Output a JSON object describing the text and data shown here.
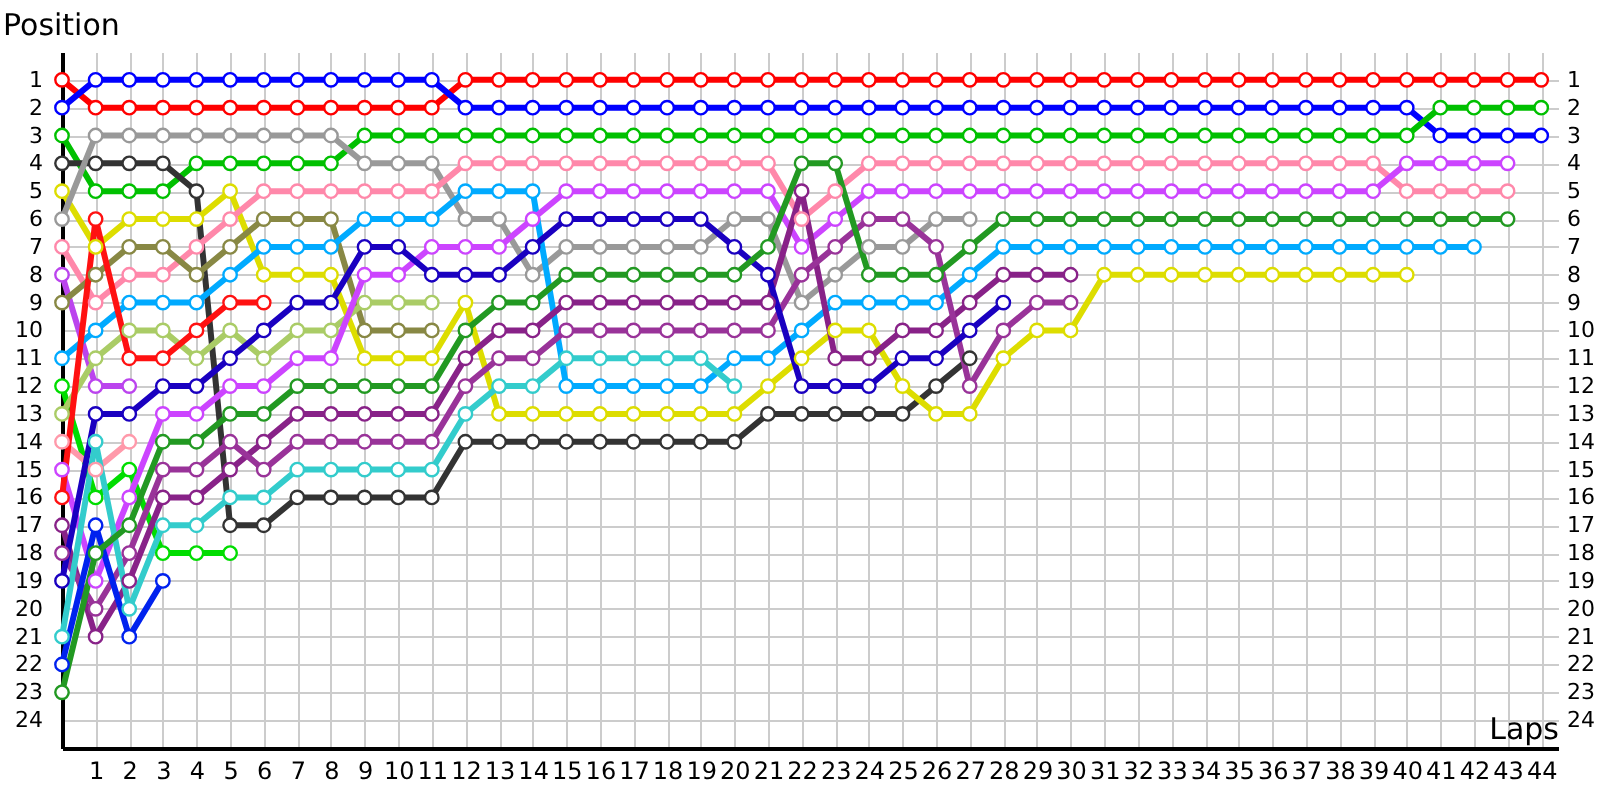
{
  "chart_data": {
    "type": "line",
    "xlabel": "Laps",
    "ylabel": "Position",
    "x": [
      0,
      1,
      2,
      3,
      4,
      5,
      6,
      7,
      8,
      9,
      10,
      11,
      12,
      13,
      14,
      15,
      16,
      17,
      18,
      19,
      20,
      21,
      22,
      23,
      24,
      25,
      26,
      27,
      28,
      29,
      30,
      31,
      32,
      33,
      34,
      35,
      36,
      37,
      38,
      39,
      40,
      41,
      42,
      43,
      44
    ],
    "xlim": [
      0,
      44.5
    ],
    "xticks": [
      1,
      2,
      3,
      4,
      5,
      6,
      7,
      8,
      9,
      10,
      11,
      12,
      13,
      14,
      15,
      16,
      17,
      18,
      19,
      20,
      21,
      22,
      23,
      24,
      25,
      26,
      27,
      28,
      29,
      30,
      31,
      32,
      33,
      34,
      35,
      36,
      37,
      38,
      39,
      40,
      41,
      42,
      43,
      44
    ],
    "ylim": [
      25,
      0
    ],
    "yticks": [
      1,
      2,
      3,
      4,
      5,
      6,
      7,
      8,
      9,
      10,
      11,
      12,
      13,
      14,
      15,
      16,
      17,
      18,
      19,
      20,
      21,
      22,
      23,
      24
    ],
    "y2lim": [
      25,
      0
    ],
    "y2ticks": [
      1,
      2,
      3,
      4,
      5,
      6,
      7,
      8,
      9,
      10,
      11,
      12,
      13,
      14,
      15,
      16,
      17,
      18,
      19,
      20,
      21,
      22,
      23,
      24
    ],
    "grid": true,
    "legend": false,
    "marker": "circle",
    "series": [
      {
        "color": "#ff0000",
        "values": [
          1,
          2,
          2,
          2,
          2,
          2,
          2,
          2,
          2,
          2,
          2,
          2,
          1,
          1,
          1,
          1,
          1,
          1,
          1,
          1,
          1,
          1,
          1,
          1,
          1,
          1,
          1,
          1,
          1,
          1,
          1,
          1,
          1,
          1,
          1,
          1,
          1,
          1,
          1,
          1,
          1,
          1,
          1,
          1,
          1
        ]
      },
      {
        "color": "#0000ff",
        "values": [
          2,
          1,
          1,
          1,
          1,
          1,
          1,
          1,
          1,
          1,
          1,
          1,
          2,
          2,
          2,
          2,
          2,
          2,
          2,
          2,
          2,
          2,
          2,
          2,
          2,
          2,
          2,
          2,
          2,
          2,
          2,
          2,
          2,
          2,
          2,
          2,
          2,
          2,
          2,
          2,
          2,
          3,
          3,
          3,
          3
        ]
      },
      {
        "color": "#00c000",
        "values": [
          3,
          5,
          5,
          5,
          4,
          4,
          4,
          4,
          4,
          3,
          3,
          3,
          3,
          3,
          3,
          3,
          3,
          3,
          3,
          3,
          3,
          3,
          3,
          3,
          3,
          3,
          3,
          3,
          3,
          3,
          3,
          3,
          3,
          3,
          3,
          3,
          3,
          3,
          3,
          3,
          3,
          2,
          2,
          2,
          2
        ]
      },
      {
        "color": "#333333",
        "values": [
          4,
          4,
          4,
          4,
          5,
          17,
          17,
          16,
          16,
          16,
          16,
          16,
          14,
          14,
          14,
          14,
          14,
          14,
          14,
          14,
          14,
          13,
          13,
          13,
          13,
          13,
          12,
          11,
          null,
          null,
          null,
          null,
          null,
          null,
          null,
          null,
          null,
          null,
          null,
          null,
          null,
          null,
          null,
          null,
          null
        ]
      },
      {
        "color": "#dddd00",
        "values": [
          5,
          7,
          6,
          6,
          6,
          5,
          8,
          8,
          8,
          11,
          11,
          11,
          9,
          13,
          13,
          13,
          13,
          13,
          13,
          13,
          13,
          12,
          11,
          10,
          10,
          12,
          13,
          13,
          11,
          10,
          10,
          8,
          8,
          8,
          8,
          8,
          8,
          8,
          8,
          8,
          8,
          null,
          null,
          null,
          null
        ]
      },
      {
        "color": "#999999",
        "values": [
          6,
          3,
          3,
          3,
          3,
          3,
          3,
          3,
          3,
          4,
          4,
          4,
          6,
          6,
          8,
          7,
          7,
          7,
          7,
          7,
          6,
          6,
          9,
          8,
          7,
          7,
          6,
          6,
          null,
          null,
          null,
          null,
          null,
          null,
          null,
          null,
          null,
          null,
          null,
          null,
          null,
          null,
          null,
          null,
          null
        ]
      },
      {
        "color": "#ff88aa",
        "values": [
          7,
          9,
          8,
          8,
          7,
          6,
          5,
          5,
          5,
          5,
          5,
          5,
          4,
          4,
          4,
          4,
          4,
          4,
          4,
          4,
          4,
          4,
          6,
          5,
          4,
          4,
          4,
          4,
          4,
          4,
          4,
          4,
          4,
          4,
          4,
          4,
          4,
          4,
          4,
          4,
          5,
          5,
          5,
          5,
          null
        ]
      },
      {
        "color": "#bb44ee",
        "values": [
          8,
          12,
          12,
          null,
          null,
          null,
          null,
          null,
          null,
          null,
          null,
          null,
          null,
          null,
          null,
          null,
          null,
          null,
          null,
          null,
          null,
          null,
          null,
          null,
          null,
          null,
          null,
          null,
          null,
          null,
          null,
          null,
          null,
          null,
          null,
          null,
          null,
          null,
          null,
          null,
          null,
          null,
          null,
          null,
          null
        ]
      },
      {
        "color": "#888844",
        "values": [
          9,
          8,
          7,
          7,
          8,
          7,
          6,
          6,
          6,
          10,
          10,
          10,
          null,
          null,
          null,
          null,
          null,
          null,
          null,
          null,
          null,
          null,
          null,
          null,
          null,
          null,
          null,
          null,
          null,
          null,
          null,
          null,
          null,
          null,
          null,
          null,
          null,
          null,
          null,
          null,
          null,
          null,
          null,
          null,
          null
        ]
      },
      {
        "color": "#00aaff",
        "values": [
          11,
          10,
          9,
          9,
          9,
          8,
          7,
          7,
          7,
          6,
          6,
          6,
          5,
          5,
          5,
          12,
          12,
          12,
          12,
          12,
          11,
          11,
          10,
          9,
          9,
          9,
          9,
          8,
          7,
          7,
          7,
          7,
          7,
          7,
          7,
          7,
          7,
          7,
          7,
          7,
          7,
          7,
          7,
          null,
          null
        ]
      },
      {
        "color": "#00dd00",
        "values": [
          12,
          16,
          15,
          18,
          18,
          18,
          null,
          null,
          null,
          null,
          null,
          null,
          null,
          null,
          null,
          null,
          null,
          null,
          null,
          null,
          null,
          null,
          null,
          null,
          null,
          null,
          null,
          null,
          null,
          null,
          null,
          null,
          null,
          null,
          null,
          null,
          null,
          null,
          null,
          null,
          null,
          null,
          null,
          null,
          null
        ]
      },
      {
        "color": "#aacc66",
        "values": [
          13,
          11,
          10,
          10,
          11,
          10,
          11,
          10,
          10,
          9,
          9,
          9,
          null,
          null,
          null,
          null,
          null,
          null,
          null,
          null,
          null,
          null,
          null,
          null,
          null,
          null,
          null,
          null,
          null,
          null,
          null,
          null,
          null,
          null,
          null,
          null,
          null,
          null,
          null,
          null,
          null,
          null,
          null,
          null,
          null
        ]
      },
      {
        "color": "#ff99aa",
        "values": [
          14,
          15,
          14,
          null,
          null,
          null,
          null,
          null,
          null,
          null,
          null,
          null,
          null,
          null,
          null,
          null,
          null,
          null,
          null,
          null,
          null,
          null,
          null,
          null,
          null,
          null,
          null,
          null,
          null,
          null,
          null,
          null,
          null,
          null,
          null,
          null,
          null,
          null,
          null,
          null,
          null,
          null,
          null,
          null,
          null
        ]
      },
      {
        "color": "#cc44ff",
        "values": [
          15,
          19,
          16,
          13,
          13,
          12,
          12,
          11,
          11,
          8,
          8,
          7,
          7,
          7,
          6,
          5,
          5,
          5,
          5,
          5,
          5,
          5,
          7,
          6,
          5,
          5,
          5,
          5,
          5,
          5,
          5,
          5,
          5,
          5,
          5,
          5,
          5,
          5,
          5,
          5,
          4,
          4,
          4,
          4,
          null
        ]
      },
      {
        "color": "#ff1111",
        "values": [
          16,
          6,
          11,
          11,
          10,
          9,
          9,
          null,
          null,
          null,
          null,
          null,
          null,
          null,
          null,
          null,
          null,
          null,
          null,
          null,
          null,
          null,
          null,
          null,
          null,
          null,
          null,
          null,
          null,
          null,
          null,
          null,
          null,
          null,
          null,
          null,
          null,
          null,
          null,
          null,
          null,
          null,
          null,
          null,
          null
        ]
      },
      {
        "color": "#882288",
        "values": [
          17,
          21,
          19,
          16,
          16,
          15,
          14,
          13,
          13,
          13,
          13,
          13,
          11,
          10,
          10,
          9,
          9,
          9,
          9,
          9,
          9,
          9,
          5,
          11,
          11,
          10,
          10,
          9,
          8,
          8,
          8,
          null,
          null,
          null,
          null,
          null,
          null,
          null,
          null,
          null,
          null,
          null,
          null,
          null,
          null
        ]
      },
      {
        "color": "#993399",
        "values": [
          18,
          20,
          18,
          15,
          15,
          14,
          15,
          14,
          14,
          14,
          14,
          14,
          12,
          11,
          11,
          10,
          10,
          10,
          10,
          10,
          10,
          10,
          8,
          7,
          6,
          6,
          7,
          12,
          10,
          9,
          9,
          null,
          null,
          null,
          null,
          null,
          null,
          null,
          null,
          null,
          null,
          null,
          null,
          null,
          null
        ]
      },
      {
        "color": "#1a00c0",
        "values": [
          19,
          13,
          13,
          12,
          12,
          11,
          10,
          9,
          9,
          7,
          7,
          8,
          8,
          8,
          7,
          6,
          6,
          6,
          6,
          6,
          7,
          8,
          12,
          12,
          12,
          11,
          11,
          10,
          9,
          null,
          null,
          null,
          null,
          null,
          null,
          null,
          null,
          null,
          null,
          null,
          null,
          null,
          null,
          null,
          null
        ]
      },
      {
        "color": "#33cccc",
        "values": [
          21,
          14,
          20,
          17,
          17,
          16,
          16,
          15,
          15,
          15,
          15,
          15,
          13,
          12,
          12,
          11,
          11,
          11,
          11,
          11,
          12,
          null,
          null,
          null,
          null,
          null,
          null,
          null,
          null,
          null,
          null,
          null,
          null,
          null,
          null,
          null,
          null,
          null,
          null,
          null,
          null,
          null,
          null,
          null,
          null
        ]
      },
      {
        "color": "#0022ee",
        "values": [
          22,
          17,
          21,
          19,
          null,
          null,
          null,
          null,
          null,
          null,
          null,
          null,
          null,
          null,
          null,
          null,
          null,
          null,
          null,
          null,
          null,
          null,
          null,
          null,
          null,
          null,
          null,
          null,
          null,
          null,
          null,
          null,
          null,
          null,
          null,
          null,
          null,
          null,
          null,
          null,
          null,
          null,
          null,
          null,
          null
        ]
      },
      {
        "color": "#229922",
        "values": [
          23,
          18,
          17,
          14,
          14,
          13,
          13,
          12,
          12,
          12,
          12,
          12,
          10,
          9,
          9,
          8,
          8,
          8,
          8,
          8,
          8,
          7,
          4,
          4,
          8,
          8,
          8,
          7,
          6,
          6,
          6,
          6,
          6,
          6,
          6,
          6,
          6,
          6,
          6,
          6,
          6,
          6,
          6,
          6,
          null
        ]
      }
    ]
  }
}
